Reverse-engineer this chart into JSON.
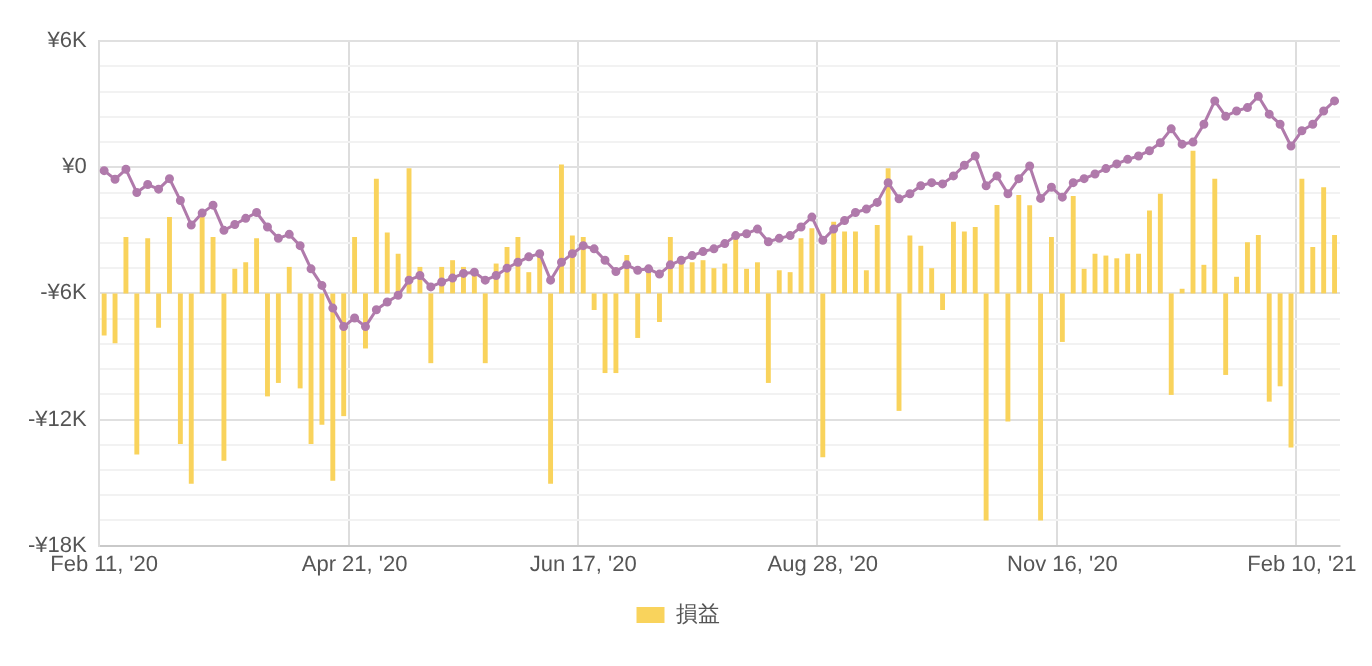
{
  "chart_data": {
    "type": "bar",
    "categories": [
      "Feb 11, '20",
      null,
      null,
      null,
      null,
      null,
      null,
      null,
      null,
      null,
      null,
      null,
      null,
      null,
      null,
      null,
      null,
      null,
      null,
      null,
      null,
      null,
      null,
      "Apr 21, '20",
      null,
      null,
      null,
      null,
      null,
      null,
      null,
      null,
      null,
      null,
      null,
      null,
      null,
      null,
      null,
      null,
      null,
      null,
      null,
      null,
      "Jun 17, '20",
      null,
      null,
      null,
      null,
      null,
      null,
      null,
      null,
      null,
      null,
      null,
      null,
      null,
      null,
      null,
      null,
      null,
      null,
      null,
      null,
      null,
      "Aug 28, '20",
      null,
      null,
      null,
      null,
      null,
      null,
      null,
      null,
      null,
      null,
      null,
      null,
      null,
      null,
      null,
      null,
      null,
      null,
      null,
      null,
      null,
      "Nov 16, '20",
      null,
      null,
      null,
      null,
      null,
      null,
      null,
      null,
      null,
      null,
      null,
      null,
      null,
      null,
      null,
      null,
      null,
      null,
      null,
      null,
      null,
      "Feb 10, '21",
      null,
      null,
      null
    ],
    "series": [
      {
        "name": "損益",
        "color": "#f9d35c",
        "base": [
          -6000,
          -6000,
          -6000,
          -6000,
          -6000,
          -6000,
          -6000,
          -6000,
          -6000,
          -6000,
          -6000,
          -6000,
          -6000,
          -6000,
          -6000,
          -6000,
          -6000,
          -6000,
          -6000,
          -6000,
          -6000,
          -6000,
          -6000,
          -6000,
          -6000,
          -6000,
          -6000,
          -6000,
          -6000,
          -6000,
          -6000,
          -6000,
          -6000,
          -6000,
          -6000,
          -6000,
          -6000,
          -6000,
          -6000,
          -6000,
          -6000,
          -6000,
          -6000,
          -6000,
          -6000,
          -6000,
          -6000,
          -6000,
          -6000,
          -6000,
          -6000,
          -6000,
          -6000,
          -6000,
          -6000,
          -6000,
          -6000,
          -6000,
          -6000,
          -6000,
          -6000,
          -6000,
          -6000,
          -6000,
          -6000,
          -6000,
          -6000,
          -6000,
          -6000,
          -6000,
          -6000,
          -6000,
          -6000,
          -6000,
          -6000,
          -6000,
          -6000,
          -6000,
          -6000,
          -6000,
          -6000,
          -6000,
          -6000,
          -6000,
          -6000,
          -6000,
          -6000,
          -6000,
          -6000,
          -6000,
          -6000,
          -6000,
          -6000,
          -6000,
          -6000,
          -6000,
          -6000,
          -6000,
          -6000,
          -6000,
          -6000,
          -6000,
          -6000,
          -6000,
          -6000,
          -6000,
          -6000,
          -6000,
          -6000,
          -6000,
          -6000,
          -6000,
          -6000,
          -6000
        ],
        "values": [
          -2000,
          -2370,
          2680,
          -7670,
          2620,
          -1640,
          3630,
          -7170,
          -9060,
          3790,
          2680,
          -7960,
          1170,
          1480,
          2620,
          -4900,
          -4260,
          1260,
          -4520,
          -7170,
          -6250,
          -8910,
          -5840,
          2680,
          -2620,
          5460,
          2900,
          1890,
          6000,
          1260,
          -3320,
          1260,
          1580,
          1260,
          1100,
          -3320,
          1420,
          2210,
          2680,
          1010,
          1890,
          -9060,
          6130,
          2750,
          2680,
          -790,
          -3790,
          -3790,
          1830,
          -2120,
          1260,
          -1360,
          2680,
          1420,
          1480,
          1580,
          1200,
          1420,
          2680,
          1170,
          1480,
          -4260,
          1100,
          1010,
          2620,
          3100,
          -7800,
          3410,
          2940,
          2940,
          1100,
          3250,
          6000,
          -5590,
          2750,
          2270,
          1200,
          -790,
          3410,
          2940,
          3160,
          -10800,
          4210,
          -6100,
          4680,
          4200,
          -10800,
          2680,
          -2310,
          4640,
          1170,
          1890,
          1800,
          1670,
          1890,
          1890,
          3950,
          4740,
          -4830,
          220,
          6790,
          1360,
          5460,
          -3880,
          790,
          2430,
          2780,
          -5150,
          -4420,
          -7330,
          5460,
          2210,
          5050,
          2780
        ]
      },
      {
        "type": "line",
        "color": "#b07aab",
        "marker": "circle",
        "values": [
          -160,
          -570,
          -95,
          -1200,
          -820,
          -1040,
          -540,
          -1580,
          -2750,
          -2180,
          -1800,
          -3000,
          -2720,
          -2430,
          -2150,
          -2840,
          -3380,
          -3190,
          -3730,
          -4830,
          -5620,
          -6700,
          -7580,
          -7170,
          -7580,
          -6780,
          -6410,
          -6090,
          -5370,
          -5150,
          -5690,
          -5460,
          -5270,
          -5050,
          -4990,
          -5370,
          -5150,
          -4800,
          -4520,
          -4260,
          -4110,
          -5370,
          -4520,
          -4110,
          -3730,
          -3880,
          -4420,
          -4960,
          -4640,
          -4900,
          -4830,
          -5080,
          -4640,
          -4420,
          -4200,
          -4010,
          -3880,
          -3630,
          -3250,
          -3160,
          -2940,
          -3540,
          -3380,
          -3250,
          -2840,
          -2370,
          -3470,
          -2940,
          -2530,
          -2150,
          -1990,
          -1670,
          -730,
          -1500,
          -1260,
          -880,
          -730,
          -790,
          -410,
          100,
          540,
          -880,
          -410,
          -1260,
          -540,
          60,
          -1480,
          -950,
          -1420,
          -730,
          -540,
          -320,
          -60,
          160,
          380,
          540,
          790,
          1170,
          1830,
          1100,
          1200,
          2050,
          3160,
          2430,
          2680,
          2840,
          3380,
          2530,
          2050,
          1010,
          1740,
          2050,
          2680,
          3160
        ]
      }
    ],
    "ylim": [
      -18000,
      6000
    ],
    "yticks": [
      {
        "value": -18000,
        "label": "-¥18K"
      },
      {
        "value": -16800,
        "label": null
      },
      {
        "value": -15600,
        "label": null
      },
      {
        "value": -14400,
        "label": null
      },
      {
        "value": -13200,
        "label": null
      },
      {
        "value": -12000,
        "label": "-¥12K"
      },
      {
        "value": -10800,
        "label": null
      },
      {
        "value": -9600,
        "label": null
      },
      {
        "value": -8400,
        "label": null
      },
      {
        "value": -7200,
        "label": null
      },
      {
        "value": -6000,
        "label": "-¥6K"
      },
      {
        "value": -4800,
        "label": null
      },
      {
        "value": -3600,
        "label": null
      },
      {
        "value": -2400,
        "label": null
      },
      {
        "value": -1200,
        "label": null
      },
      {
        "value": 0,
        "label": "¥0"
      },
      {
        "value": 1200,
        "label": null
      },
      {
        "value": 2400,
        "label": null
      },
      {
        "value": 3600,
        "label": null
      },
      {
        "value": 4800,
        "label": null
      },
      {
        "value": 6000,
        "label": "¥6K"
      }
    ],
    "grid": true,
    "legend": "bottom"
  }
}
